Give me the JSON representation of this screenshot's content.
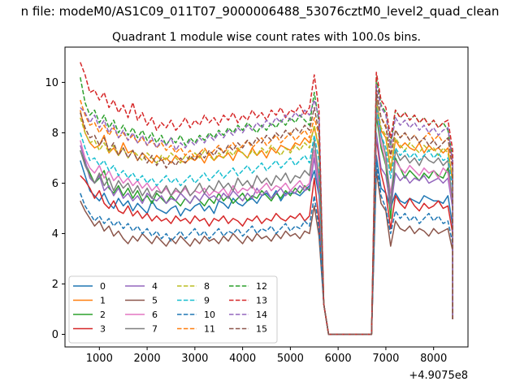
{
  "figure": {
    "suptitle": "n file: modeM0/AS1C09_011T07_9000006488_53076cztM0_level2_quad_clean",
    "title": "Quadrant 1 module wise count rates with 100.0s bins.",
    "offset_label": "+4.9075e8"
  },
  "chart_data": {
    "type": "line",
    "title": "Quadrant 1 module wise count rates with 100.0s bins.",
    "xlabel": "",
    "ylabel": "",
    "x_offset": 490750000,
    "xlim": [
      280,
      8720
    ],
    "ylim": [
      -0.5,
      11.4
    ],
    "xticks": [
      1000,
      2000,
      3000,
      4000,
      5000,
      6000,
      7000,
      8000
    ],
    "yticks": [
      0,
      2,
      4,
      6,
      8,
      10
    ],
    "grid": false,
    "legend_placement": "lower-left",
    "legend_columns": 4,
    "series": [
      {
        "name": "0",
        "color": "#1f77b4",
        "dash": "solid",
        "pre": [
          6.9,
          6.3,
          5.7,
          5.5,
          5.3,
          5.6,
          5.2,
          5.0,
          5.4,
          5.1,
          5.3,
          4.9,
          5.2,
          5.0,
          4.8,
          5.3,
          5.0,
          4.9,
          4.8,
          5.0,
          5.1,
          4.7,
          5.0,
          4.9,
          5.1,
          5.2,
          4.9,
          5.1,
          4.8,
          5.3,
          5.2,
          5.0,
          5.4,
          5.2,
          5.1,
          5.3,
          5.4,
          5.2,
          5.5,
          5.6,
          5.4,
          5.7,
          5.3,
          5.6,
          5.6,
          5.6,
          5.5,
          5.7,
          5.9,
          6.5,
          5.5
        ],
        "post": [
          7.1,
          5.8,
          5.6,
          5.0,
          5.6,
          5.3,
          5.2,
          5.4,
          5.3,
          5.2,
          5.5,
          5.4,
          5.3,
          5.3,
          5.2,
          5.5,
          4.3
        ]
      },
      {
        "name": "1",
        "color": "#ff7f0e",
        "dash": "solid",
        "pre": [
          8.9,
          8.0,
          7.6,
          7.4,
          7.5,
          7.9,
          7.2,
          7.4,
          7.1,
          7.6,
          7.2,
          7.3,
          6.9,
          7.2,
          7.0,
          6.8,
          7.1,
          6.9,
          7.0,
          6.8,
          7.1,
          6.9,
          6.8,
          7.0,
          6.9,
          7.1,
          6.8,
          7.2,
          6.9,
          7.1,
          7.0,
          7.2,
          6.9,
          7.3,
          7.2,
          7.0,
          7.4,
          7.1,
          7.3,
          7.0,
          7.4,
          7.2,
          7.5,
          7.4,
          7.3,
          7.6,
          7.5,
          7.8,
          7.6,
          8.2,
          7.4
        ],
        "post": [
          9.0,
          8.1,
          7.8,
          6.5,
          7.7,
          7.4,
          7.6,
          7.4,
          7.3,
          7.6,
          7.2,
          7.5,
          7.3,
          7.4,
          7.2,
          7.4,
          6.0
        ]
      },
      {
        "name": "2",
        "color": "#2ca02c",
        "dash": "solid",
        "pre": [
          7.3,
          6.8,
          6.4,
          6.0,
          6.2,
          6.5,
          5.8,
          5.6,
          5.9,
          5.5,
          5.8,
          5.4,
          5.7,
          5.3,
          5.5,
          5.2,
          5.6,
          5.4,
          5.2,
          5.5,
          5.3,
          5.1,
          5.4,
          5.2,
          5.5,
          5.3,
          5.1,
          5.4,
          5.2,
          5.6,
          5.3,
          5.5,
          5.2,
          5.4,
          5.6,
          5.3,
          5.5,
          5.4,
          5.7,
          5.5,
          5.3,
          5.6,
          5.4,
          5.7,
          5.5,
          5.8,
          5.6,
          5.9,
          5.7,
          7.3,
          5.8
        ],
        "post": [
          8.7,
          7.4,
          6.7,
          4.6,
          7.0,
          6.6,
          6.2,
          6.5,
          6.3,
          6.1,
          6.4,
          6.2,
          6.5,
          6.3,
          6.2,
          6.6,
          5.1
        ]
      },
      {
        "name": "3",
        "color": "#d62728",
        "dash": "solid",
        "pre": [
          6.3,
          6.1,
          5.8,
          5.4,
          5.7,
          5.2,
          5.0,
          5.3,
          4.9,
          4.8,
          5.1,
          4.7,
          4.9,
          4.6,
          4.8,
          4.5,
          4.7,
          4.5,
          4.6,
          4.4,
          4.7,
          4.5,
          4.6,
          4.4,
          4.7,
          4.5,
          4.6,
          4.3,
          4.6,
          4.5,
          4.7,
          4.4,
          4.6,
          4.5,
          4.3,
          4.6,
          4.5,
          4.7,
          4.4,
          4.6,
          4.5,
          4.8,
          4.6,
          4.5,
          4.7,
          4.6,
          4.8,
          4.5,
          4.7,
          6.2,
          4.5
        ],
        "post": [
          7.8,
          6.4,
          5.6,
          4.2,
          5.5,
          5.2,
          5.0,
          5.4,
          5.1,
          4.9,
          5.2,
          5.0,
          5.1,
          5.3,
          5.0,
          5.1,
          4.0
        ]
      },
      {
        "name": "4",
        "color": "#9467bd",
        "dash": "solid",
        "pre": [
          7.5,
          6.9,
          6.2,
          6.0,
          6.3,
          5.7,
          5.9,
          5.5,
          5.8,
          5.4,
          5.6,
          5.3,
          5.5,
          5.2,
          5.6,
          5.4,
          5.3,
          5.5,
          5.2,
          5.4,
          5.3,
          5.6,
          5.4,
          5.2,
          5.5,
          5.3,
          5.6,
          5.4,
          5.5,
          5.3,
          5.6,
          5.4,
          5.7,
          5.5,
          5.3,
          5.6,
          5.4,
          5.8,
          5.5,
          5.7,
          5.4,
          5.6,
          5.8,
          5.5,
          5.7,
          5.6,
          5.9,
          5.7,
          5.8,
          7.0,
          5.6
        ],
        "post": [
          8.0,
          6.6,
          6.3,
          5.0,
          6.4,
          6.1,
          6.3,
          6.0,
          6.2,
          6.1,
          6.3,
          6.0,
          6.1,
          6.2,
          6.0,
          6.2,
          5.0
        ]
      },
      {
        "name": "5",
        "color": "#8c564b",
        "dash": "solid",
        "pre": [
          5.3,
          4.9,
          4.6,
          4.3,
          4.5,
          4.1,
          4.3,
          3.9,
          4.1,
          3.8,
          3.6,
          3.9,
          3.7,
          4.0,
          3.8,
          3.6,
          3.9,
          3.7,
          3.5,
          3.8,
          3.6,
          3.9,
          3.7,
          3.5,
          3.8,
          3.6,
          3.9,
          3.7,
          3.8,
          3.6,
          3.9,
          3.7,
          4.0,
          3.8,
          3.6,
          3.9,
          3.7,
          4.0,
          3.8,
          3.9,
          3.7,
          4.0,
          3.8,
          4.1,
          3.9,
          4.0,
          3.8,
          4.1,
          4.0,
          5.1,
          3.9
        ],
        "post": [
          6.5,
          5.2,
          4.9,
          3.5,
          4.5,
          4.2,
          4.1,
          4.3,
          4.0,
          4.2,
          4.1,
          3.9,
          4.2,
          4.0,
          4.1,
          4.2,
          3.3
        ]
      },
      {
        "name": "6",
        "color": "#e377c2",
        "dash": "solid",
        "pre": [
          7.7,
          7.0,
          6.6,
          6.4,
          6.7,
          6.2,
          6.5,
          6.1,
          6.3,
          6.0,
          6.2,
          5.9,
          6.1,
          5.8,
          6.0,
          5.7,
          5.9,
          5.6,
          5.8,
          5.5,
          5.7,
          5.6,
          5.8,
          5.5,
          5.7,
          5.6,
          5.8,
          5.5,
          5.7,
          5.6,
          5.8,
          5.5,
          5.9,
          5.6,
          5.8,
          5.7,
          5.9,
          5.6,
          5.8,
          6.0,
          5.7,
          5.9,
          5.8,
          6.0,
          5.7,
          5.9,
          6.1,
          5.8,
          6.0,
          7.3,
          5.9
        ],
        "post": [
          9.0,
          7.6,
          6.8,
          5.6,
          6.9,
          6.6,
          6.4,
          6.7,
          6.5,
          6.3,
          6.6,
          6.4,
          6.5,
          6.2,
          6.6,
          6.4,
          5.2
        ]
      },
      {
        "name": "7",
        "color": "#7f7f7f",
        "dash": "solid",
        "pre": [
          7.3,
          6.7,
          6.3,
          6.0,
          6.4,
          5.9,
          6.2,
          5.7,
          6.1,
          5.8,
          6.0,
          5.6,
          5.9,
          5.5,
          5.8,
          5.4,
          5.7,
          5.6,
          5.9,
          5.5,
          5.8,
          5.6,
          5.9,
          5.5,
          5.7,
          6.0,
          5.6,
          5.9,
          5.7,
          6.1,
          5.8,
          6.0,
          5.7,
          6.2,
          5.9,
          6.1,
          5.8,
          6.3,
          6.0,
          6.2,
          5.9,
          6.3,
          6.1,
          6.4,
          6.0,
          6.3,
          6.2,
          6.5,
          6.3,
          7.7,
          6.2
        ],
        "post": [
          9.5,
          7.9,
          7.1,
          5.2,
          7.3,
          6.9,
          7.1,
          6.8,
          7.0,
          6.7,
          7.1,
          6.9,
          6.8,
          7.0,
          6.7,
          6.9,
          5.2
        ]
      },
      {
        "name": "8",
        "color": "#bcbd22",
        "dash": "dashed",
        "pre": [
          8.6,
          8.0,
          7.6,
          7.7,
          7.3,
          7.6,
          7.2,
          7.5,
          7.1,
          7.4,
          7.0,
          7.3,
          7.1,
          6.9,
          7.2,
          7.0,
          6.8,
          7.1,
          6.9,
          7.2,
          7.0,
          6.8,
          7.1,
          6.9,
          7.2,
          7.0,
          7.3,
          7.1,
          6.9,
          7.2,
          7.0,
          7.3,
          7.1,
          7.4,
          7.2,
          7.0,
          7.3,
          7.1,
          7.4,
          7.2,
          7.5,
          7.3,
          7.1,
          7.4,
          7.2,
          7.5,
          7.3,
          7.6,
          7.4,
          8.3,
          7.4
        ],
        "post": [
          9.2,
          8.2,
          7.9,
          6.6,
          7.8,
          7.5,
          7.3,
          7.6,
          7.4,
          7.2,
          7.5,
          7.3,
          7.4,
          7.1,
          7.4,
          7.2,
          6.2
        ]
      },
      {
        "name": "9",
        "color": "#17becf",
        "dash": "dashed",
        "pre": [
          8.0,
          7.4,
          6.9,
          7.0,
          6.7,
          6.9,
          6.5,
          6.7,
          6.3,
          6.5,
          6.2,
          6.4,
          6.1,
          6.3,
          6.0,
          6.2,
          5.9,
          6.1,
          6.3,
          6.0,
          6.2,
          5.9,
          6.1,
          6.3,
          6.0,
          6.2,
          6.4,
          6.1,
          6.3,
          6.5,
          6.2,
          6.4,
          6.6,
          6.3,
          6.5,
          6.7,
          6.4,
          6.6,
          6.8,
          6.5,
          6.7,
          6.9,
          6.6,
          6.8,
          7.0,
          6.7,
          6.9,
          7.1,
          6.8,
          7.9,
          6.9
        ],
        "post": [
          9.0,
          7.9,
          7.4,
          6.2,
          7.4,
          7.1,
          7.3,
          7.0,
          7.2,
          6.9,
          7.1,
          7.3,
          7.0,
          7.2,
          6.9,
          7.0,
          5.8
        ]
      },
      {
        "name": "10",
        "color": "#1f77b4",
        "dash": "dashed",
        "pre": [
          5.6,
          5.1,
          4.8,
          4.5,
          4.7,
          4.4,
          4.6,
          4.3,
          4.5,
          4.2,
          4.4,
          4.1,
          4.3,
          4.0,
          4.2,
          3.9,
          4.1,
          3.8,
          4.0,
          3.7,
          3.9,
          4.1,
          3.8,
          4.0,
          4.2,
          3.9,
          4.1,
          3.8,
          4.0,
          4.2,
          3.9,
          4.1,
          4.0,
          4.2,
          3.9,
          4.1,
          4.3,
          4.0,
          4.2,
          4.1,
          4.3,
          4.0,
          4.2,
          4.4,
          4.1,
          4.3,
          4.2,
          4.5,
          4.3,
          5.5,
          4.2
        ],
        "post": [
          6.8,
          5.5,
          5.0,
          4.0,
          4.9,
          4.6,
          4.8,
          4.5,
          4.7,
          4.4,
          4.6,
          4.8,
          4.5,
          4.7,
          4.4,
          4.5,
          3.6
        ]
      },
      {
        "name": "11",
        "color": "#ff7f0e",
        "dash": "dashed",
        "pre": [
          9.3,
          8.7,
          8.3,
          8.4,
          8.0,
          8.3,
          7.9,
          8.2,
          7.8,
          8.0,
          7.7,
          7.9,
          7.6,
          7.8,
          7.5,
          7.7,
          7.4,
          7.6,
          7.3,
          7.5,
          7.2,
          7.4,
          7.1,
          7.3,
          7.0,
          7.2,
          7.4,
          7.1,
          7.3,
          7.5,
          7.2,
          7.4,
          7.6,
          7.3,
          7.5,
          7.7,
          7.4,
          7.6,
          7.8,
          7.5,
          7.7,
          7.9,
          7.6,
          7.8,
          8.0,
          7.7,
          7.9,
          8.1,
          7.8,
          8.6,
          7.9
        ],
        "post": [
          9.6,
          8.6,
          8.3,
          7.0,
          8.1,
          7.8,
          8.0,
          7.7,
          7.9,
          7.6,
          7.8,
          8.0,
          7.7,
          7.9,
          7.6,
          7.8,
          6.7
        ]
      },
      {
        "name": "12",
        "color": "#2ca02c",
        "dash": "dashed",
        "pre": [
          10.2,
          9.2,
          8.7,
          8.9,
          8.4,
          8.7,
          8.2,
          8.5,
          8.0,
          8.3,
          7.9,
          8.2,
          7.8,
          8.1,
          7.7,
          8.0,
          7.6,
          7.9,
          7.5,
          7.8,
          7.6,
          7.9,
          7.5,
          7.8,
          7.6,
          7.9,
          7.7,
          8.0,
          7.8,
          8.1,
          7.9,
          8.2,
          8.0,
          8.3,
          8.1,
          8.4,
          8.2,
          8.0,
          8.3,
          8.1,
          8.4,
          8.2,
          8.5,
          8.3,
          8.6,
          8.4,
          8.7,
          8.5,
          8.3,
          9.6,
          8.4
        ],
        "post": [
          10.2,
          9.1,
          8.8,
          7.5,
          8.9,
          8.6,
          8.8,
          8.5,
          8.7,
          8.4,
          8.6,
          8.3,
          8.5,
          8.2,
          8.4,
          8.1,
          7.0
        ]
      },
      {
        "name": "13",
        "color": "#d62728",
        "dash": "dashed",
        "pre": [
          10.8,
          10.3,
          9.6,
          9.7,
          9.3,
          9.6,
          9.0,
          9.3,
          8.8,
          9.1,
          8.6,
          9.2,
          8.5,
          8.8,
          8.3,
          8.6,
          8.1,
          8.4,
          8.2,
          8.5,
          8.1,
          8.3,
          8.6,
          8.2,
          8.5,
          8.3,
          8.7,
          8.4,
          8.6,
          8.3,
          8.7,
          8.5,
          8.8,
          8.4,
          8.7,
          8.5,
          8.9,
          8.6,
          8.8,
          8.5,
          8.9,
          8.7,
          9.0,
          8.6,
          8.9,
          8.8,
          9.1,
          8.7,
          9.0,
          10.3,
          8.9
        ],
        "post": [
          10.4,
          9.3,
          9.0,
          7.8,
          8.9,
          8.6,
          8.8,
          8.5,
          8.7,
          8.4,
          8.6,
          8.3,
          8.5,
          8.2,
          8.4,
          8.5,
          7.3
        ]
      },
      {
        "name": "14",
        "color": "#9467bd",
        "dash": "dashed",
        "pre": [
          9.0,
          8.8,
          8.4,
          8.7,
          8.2,
          8.5,
          8.0,
          8.3,
          7.8,
          8.1,
          7.7,
          8.0,
          7.6,
          7.9,
          7.5,
          7.8,
          7.4,
          7.7,
          7.5,
          7.8,
          7.3,
          7.6,
          7.4,
          7.7,
          7.5,
          7.8,
          7.6,
          7.9,
          7.7,
          8.0,
          7.8,
          8.1,
          7.9,
          8.2,
          8.0,
          8.3,
          8.1,
          8.4,
          8.2,
          8.5,
          8.3,
          8.6,
          8.4,
          8.7,
          8.5,
          8.8,
          8.6,
          8.9,
          8.7,
          9.3,
          8.6
        ],
        "post": [
          9.9,
          9.0,
          8.7,
          7.4,
          8.6,
          8.3,
          8.5,
          8.2,
          8.4,
          8.1,
          8.3,
          8.0,
          8.2,
          7.9,
          8.1,
          8.2,
          6.8
        ]
      },
      {
        "name": "15",
        "color": "#8c564b",
        "dash": "dashed",
        "pre": [
          8.8,
          8.2,
          7.8,
          7.9,
          7.5,
          7.8,
          7.3,
          7.6,
          7.1,
          7.4,
          7.0,
          7.3,
          6.9,
          7.2,
          6.8,
          7.1,
          6.7,
          7.0,
          6.6,
          6.9,
          6.7,
          7.0,
          6.8,
          7.1,
          6.9,
          7.2,
          7.0,
          7.3,
          7.1,
          7.4,
          7.2,
          7.5,
          7.3,
          7.6,
          7.4,
          7.7,
          7.5,
          7.8,
          7.6,
          7.9,
          7.7,
          8.0,
          7.8,
          8.1,
          7.9,
          8.2,
          8.0,
          8.3,
          8.1,
          9.0,
          8.0
        ],
        "post": [
          9.7,
          8.6,
          8.2,
          7.1,
          8.1,
          7.8,
          8.0,
          7.7,
          7.9,
          7.6,
          7.8,
          7.5,
          7.7,
          7.4,
          7.6,
          7.8,
          6.5
        ]
      }
    ],
    "segments": {
      "pre_x_start": 600,
      "pre_x_end": 5600,
      "drop": [
        {
          "x": 5700,
          "y": 1.2
        },
        {
          "x": 5800,
          "y": 0
        }
      ],
      "zero_x": [
        5800,
        6700
      ],
      "rise_x": 6800,
      "post_x_start": 6800,
      "post_x_end": 8400,
      "final_x": 8400,
      "final_y": 0.6
    }
  }
}
